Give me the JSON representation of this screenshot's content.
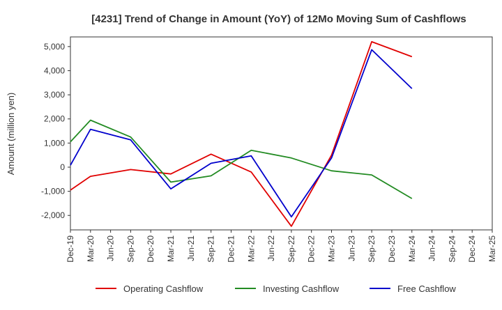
{
  "chart_data": {
    "type": "line",
    "title": "[4231]  Trend of Change in Amount (YoY) of 12Mo Moving Sum of Cashflows",
    "xlabel": "",
    "ylabel": "Amount (million yen)",
    "ylim": [
      -2600,
      5400
    ],
    "yticks": [
      -2000,
      -1000,
      0,
      1000,
      2000,
      3000,
      4000,
      5000
    ],
    "ytick_labels": [
      "-2,000",
      "-1,000",
      "0",
      "1,000",
      "2,000",
      "3,000",
      "4,000",
      "5,000"
    ],
    "categories": [
      "Dec-19",
      "Mar-20",
      "Jun-20",
      "Sep-20",
      "Dec-20",
      "Mar-21",
      "Jun-21",
      "Sep-21",
      "Dec-21",
      "Mar-22",
      "Jun-22",
      "Sep-22",
      "Dec-22",
      "Mar-23",
      "Jun-23",
      "Sep-23",
      "Dec-23",
      "Mar-24",
      "Jun-24",
      "Sep-24",
      "Dec-24",
      "Mar-25"
    ],
    "grid": true,
    "legend_position": "bottom",
    "series": [
      {
        "name": "Operating Cashflow",
        "color": "#e00000",
        "values": [
          -950,
          -380,
          null,
          -100,
          null,
          -280,
          null,
          540,
          null,
          -200,
          null,
          -2450,
          null,
          500,
          null,
          5200,
          null,
          4580,
          null,
          null,
          null,
          null
        ]
      },
      {
        "name": "Investing Cashflow",
        "color": "#228b22",
        "values": [
          1050,
          1950,
          null,
          1250,
          null,
          -620,
          null,
          -360,
          null,
          700,
          null,
          380,
          null,
          -150,
          null,
          -320,
          null,
          -1300,
          null,
          null,
          null,
          null
        ]
      },
      {
        "name": "Free Cashflow",
        "color": "#0000cc",
        "values": [
          80,
          1570,
          null,
          1130,
          null,
          -900,
          null,
          160,
          null,
          470,
          null,
          -2060,
          null,
          380,
          null,
          4870,
          null,
          3260,
          null,
          null,
          null,
          null
        ]
      }
    ]
  }
}
